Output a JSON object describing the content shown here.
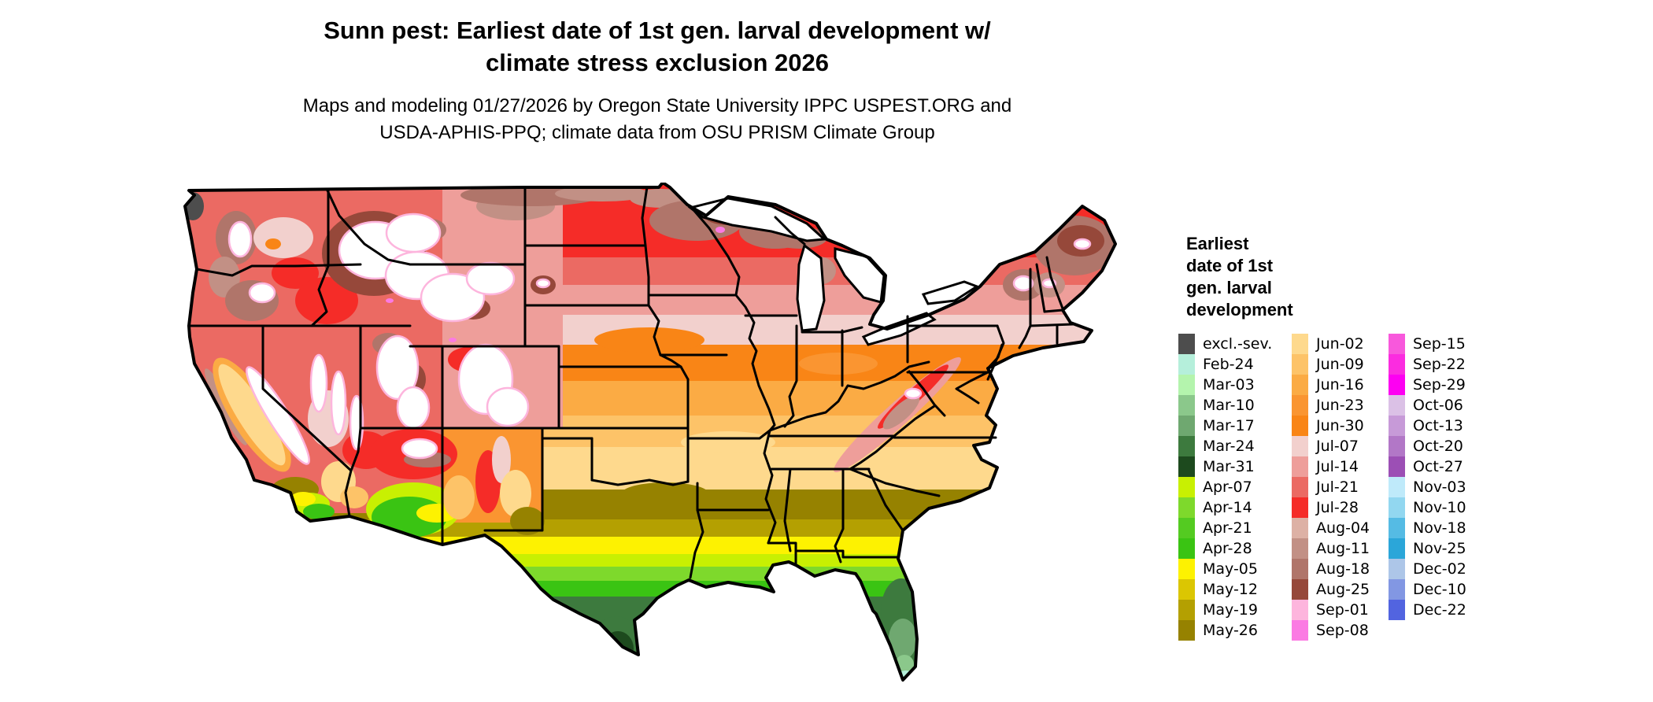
{
  "title": {
    "line1": "Sunn pest: Earliest date of 1st gen. larval development w/",
    "line2": "climate stress exclusion 2026"
  },
  "subtitle": {
    "line1": "Maps and modeling 01/27/2026 by Oregon State University IPPC USPEST.ORG and",
    "line2": "USDA-APHIS-PPQ; climate data from OSU PRISM Climate Group"
  },
  "legend": {
    "title_lines": [
      "Earliest",
      "date of 1st",
      "gen. larval",
      "development"
    ],
    "columns": [
      [
        {
          "label": "excl.-sev.",
          "color": "#4d4d4d"
        },
        {
          "label": "Feb-24",
          "color": "#b5efdb"
        },
        {
          "label": "Mar-03",
          "color": "#b4f4ad"
        },
        {
          "label": "Mar-10",
          "color": "#8bc88b"
        },
        {
          "label": "Mar-17",
          "color": "#6fa870"
        },
        {
          "label": "Mar-24",
          "color": "#3d7a3e"
        },
        {
          "label": "Mar-31",
          "color": "#1d4a1e"
        },
        {
          "label": "Apr-07",
          "color": "#c8f002"
        },
        {
          "label": "Apr-14",
          "color": "#7ed92c"
        },
        {
          "label": "Apr-21",
          "color": "#54cb21"
        },
        {
          "label": "Apr-28",
          "color": "#3ac413"
        },
        {
          "label": "May-05",
          "color": "#fdf201"
        },
        {
          "label": "May-12",
          "color": "#dbc602"
        },
        {
          "label": "May-19",
          "color": "#b4a001"
        },
        {
          "label": "May-26",
          "color": "#968200"
        }
      ],
      [
        {
          "label": "Jun-02",
          "color": "#fed98d"
        },
        {
          "label": "Jun-09",
          "color": "#fdc368"
        },
        {
          "label": "Jun-16",
          "color": "#fbab44"
        },
        {
          "label": "Jun-23",
          "color": "#fa9531"
        },
        {
          "label": "Jun-30",
          "color": "#f98516"
        },
        {
          "label": "Jul-07",
          "color": "#f2d0cd"
        },
        {
          "label": "Jul-14",
          "color": "#ee9e9a"
        },
        {
          "label": "Jul-21",
          "color": "#eb6a63"
        },
        {
          "label": "Jul-28",
          "color": "#f52c28"
        },
        {
          "label": "Aug-04",
          "color": "#ddb1a5"
        },
        {
          "label": "Aug-11",
          "color": "#c29085"
        },
        {
          "label": "Aug-18",
          "color": "#b0756a"
        },
        {
          "label": "Aug-25",
          "color": "#96483a"
        },
        {
          "label": "Sep-01",
          "color": "#fdb5dd"
        },
        {
          "label": "Sep-08",
          "color": "#fb7ae3"
        }
      ],
      [
        {
          "label": "Sep-15",
          "color": "#f858dc"
        },
        {
          "label": "Sep-22",
          "color": "#fb2ce0"
        },
        {
          "label": "Sep-29",
          "color": "#fd00f2"
        },
        {
          "label": "Oct-06",
          "color": "#dbc1e6"
        },
        {
          "label": "Oct-13",
          "color": "#c79ad8"
        },
        {
          "label": "Oct-20",
          "color": "#b277c7"
        },
        {
          "label": "Oct-27",
          "color": "#9c4fb5"
        },
        {
          "label": "Nov-03",
          "color": "#bfeafa"
        },
        {
          "label": "Nov-10",
          "color": "#92d7f0"
        },
        {
          "label": "Nov-18",
          "color": "#55bbe4"
        },
        {
          "label": "Nov-25",
          "color": "#2ba6d9"
        },
        {
          "label": "Dec-02",
          "color": "#adc6e8"
        },
        {
          "label": "Dec-10",
          "color": "#8297e3"
        },
        {
          "label": "Dec-22",
          "color": "#5264e0"
        }
      ]
    ]
  },
  "map": {
    "border_color": "#000000",
    "ocean": "#ffffff",
    "palette": {
      "excl": "#4d4d4d",
      "feb24": "#b5efdb",
      "mar03": "#b4f4ad",
      "mar10": "#8bc88b",
      "mar17": "#6fa870",
      "mar24": "#3d7a3e",
      "mar31": "#1d4a1e",
      "apr07": "#c8f002",
      "apr14": "#7ed92c",
      "apr21": "#54cb21",
      "apr28": "#3ac413",
      "may05": "#fdf201",
      "may12": "#dbc602",
      "may19": "#b4a001",
      "may26": "#968200",
      "jun02": "#fed98d",
      "jun09": "#fdc368",
      "jun16": "#fbab44",
      "jun23": "#fa9531",
      "jun30": "#f98516",
      "jul07": "#f2d0cd",
      "jul14": "#ee9e9a",
      "jul21": "#eb6a63",
      "jul28": "#f52c28",
      "aug04": "#ddb1a5",
      "aug11": "#c29085",
      "aug18": "#b0756a",
      "aug25": "#96483a",
      "sep01": "#fdb5dd",
      "sep08": "#fb7ae3",
      "white": "#ffffff"
    }
  }
}
